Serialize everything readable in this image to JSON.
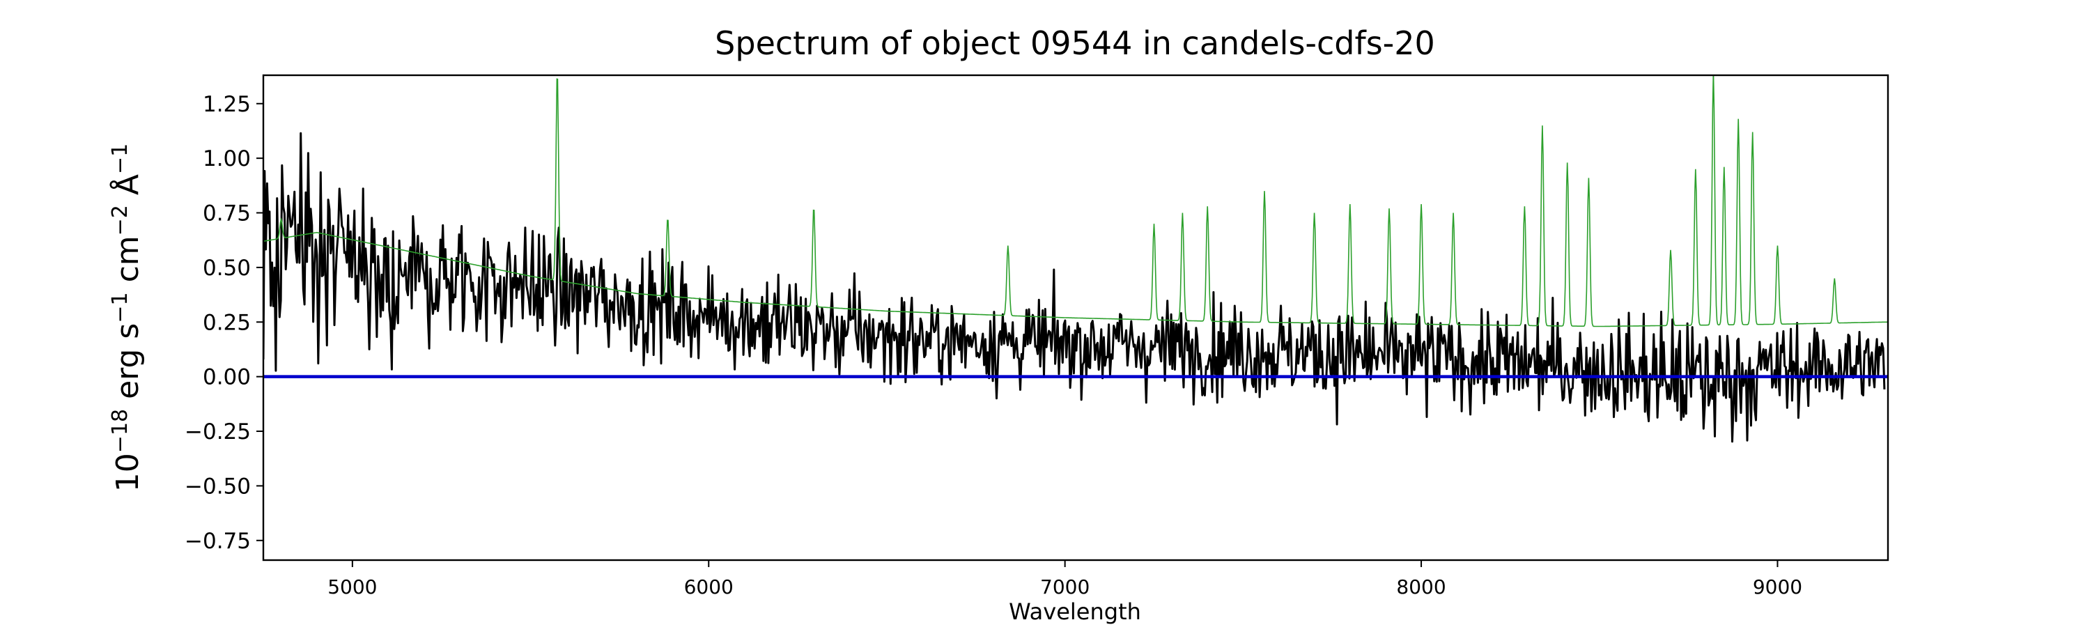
{
  "chart_data": {
    "type": "line",
    "title": "Spectrum of object 09544 in candels-cdfs-20",
    "xlabel": "Wavelength",
    "ylabel": {
      "base": "10",
      "exp1": "−18",
      "t1": " erg s",
      "exp2": "−1",
      "t2": " cm",
      "exp3": "−2",
      "t3": " Å",
      "exp4": "−1"
    },
    "xlim": [
      4750,
      9310
    ],
    "ylim": [
      -0.84,
      1.38
    ],
    "x_ticks": [
      5000,
      6000,
      7000,
      8000,
      9000
    ],
    "x_tick_labels": [
      "5000",
      "6000",
      "7000",
      "8000",
      "9000"
    ],
    "y_ticks": [
      -0.75,
      -0.5,
      -0.25,
      0.0,
      0.25,
      0.5,
      0.75,
      1.0,
      1.25
    ],
    "y_tick_labels": [
      "−0.75",
      "−0.50",
      "−0.25",
      "0.00",
      "0.25",
      "0.50",
      "0.75",
      "1.00",
      "1.25"
    ],
    "grid": false,
    "legend": false,
    "series": [
      {
        "role": "observed-flux",
        "color": "#000000",
        "x_range": [
          4750,
          9300
        ],
        "envelope": [
          [
            4750,
            0.6,
            0.4
          ],
          [
            4900,
            0.55,
            0.32
          ],
          [
            5100,
            0.46,
            0.26
          ],
          [
            5400,
            0.44,
            0.22
          ],
          [
            5700,
            0.36,
            0.2
          ],
          [
            6000,
            0.28,
            0.18
          ],
          [
            6300,
            0.22,
            0.18
          ],
          [
            6600,
            0.17,
            0.16
          ],
          [
            7000,
            0.15,
            0.16
          ],
          [
            7400,
            0.13,
            0.17
          ],
          [
            7800,
            0.1,
            0.19
          ],
          [
            8200,
            0.07,
            0.18
          ],
          [
            8600,
            0.02,
            0.2
          ],
          [
            8800,
            -0.02,
            0.25
          ],
          [
            9000,
            0.03,
            0.18
          ],
          [
            9300,
            0.06,
            0.14
          ]
        ]
      },
      {
        "role": "model-spectrum",
        "color": "#2ca02c",
        "continuum": [
          [
            4750,
            0.62
          ],
          [
            4900,
            0.66
          ],
          [
            5200,
            0.56
          ],
          [
            5500,
            0.46
          ],
          [
            5800,
            0.38
          ],
          [
            6100,
            0.34
          ],
          [
            6500,
            0.3
          ],
          [
            7000,
            0.27
          ],
          [
            7500,
            0.25
          ],
          [
            8000,
            0.24
          ],
          [
            8500,
            0.23
          ],
          [
            9000,
            0.24
          ],
          [
            9300,
            0.25
          ]
        ],
        "peaks": [
          [
            4800,
            0.72
          ],
          [
            5575,
            1.4
          ],
          [
            5885,
            0.73
          ],
          [
            6295,
            0.78
          ],
          [
            6840,
            0.6
          ],
          [
            7250,
            0.7
          ],
          [
            7330,
            0.75
          ],
          [
            7400,
            0.78
          ],
          [
            7560,
            0.85
          ],
          [
            7700,
            0.75
          ],
          [
            7800,
            0.79
          ],
          [
            7910,
            0.77
          ],
          [
            8000,
            0.79
          ],
          [
            8090,
            0.75
          ],
          [
            8290,
            0.78
          ],
          [
            8340,
            1.15
          ],
          [
            8410,
            0.98
          ],
          [
            8470,
            0.91
          ],
          [
            8700,
            0.58
          ],
          [
            8770,
            0.95
          ],
          [
            8820,
            1.4
          ],
          [
            8850,
            0.96
          ],
          [
            8890,
            1.18
          ],
          [
            8930,
            1.12
          ],
          [
            9000,
            0.6
          ],
          [
            9160,
            0.45
          ]
        ]
      },
      {
        "role": "zero-level",
        "color": "#0000cc",
        "x": [
          4750,
          9310
        ],
        "y": [
          0.0,
          0.0
        ]
      }
    ]
  }
}
